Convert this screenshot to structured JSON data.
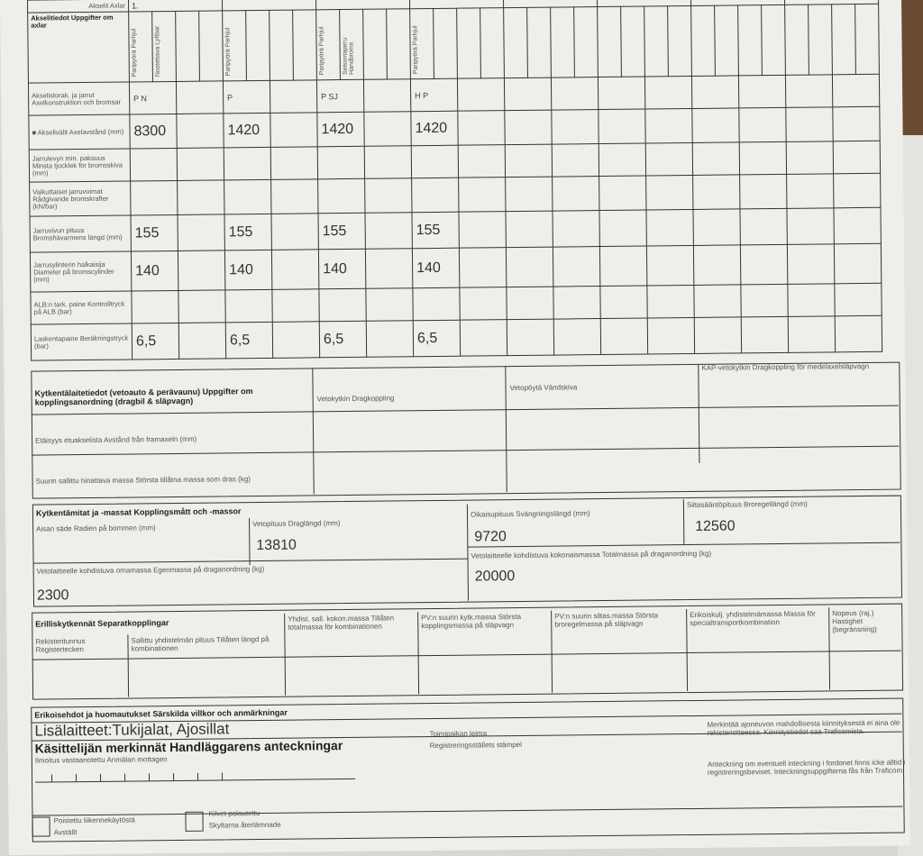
{
  "axles": {
    "header_axles_label": "Akselit Axlar",
    "header_title": "Akselitiedot Uppgifter om axlar",
    "axle_numbers": [
      "1.",
      "",
      "",
      "",
      "",
      "",
      "",
      ""
    ],
    "header_sub": [
      [
        "Paripyörä Parhjul",
        "Nostettava Lyftbar",
        "",
        ""
      ],
      [
        "Paripyörä Parhjul",
        "",
        "",
        ""
      ],
      [
        "Paripyörä Parhjul",
        "Seisontajarru Handbroms",
        "",
        ""
      ],
      [
        "Paripyörä Parhjul",
        "",
        "",
        ""
      ]
    ],
    "rows": [
      {
        "label": "Akselistorak. ja jarrut Axelkonstruktion och bromsar",
        "values": [
          "P   N",
          "P",
          "P   SJ",
          "H   P"
        ],
        "kind": "code"
      },
      {
        "label": "■ Akselivälit Axelavstånd (mm)",
        "values": [
          "8300",
          "1420",
          "1420",
          "1420"
        ],
        "kind": "val"
      },
      {
        "label": "Jarrulevyn min. paksuus Minsta tjocklek för bromsskiva (mm)",
        "values": [
          "",
          "",
          "",
          ""
        ],
        "kind": "val"
      },
      {
        "label": "Vaikuttaiset jarruvoimat Rådgivande bromskrafter (kN/bar)",
        "values": [
          "",
          "",
          "",
          ""
        ],
        "kind": "val"
      },
      {
        "label": "Jarruvivun pituus Bromshävarmens längd (mm)",
        "values": [
          "155",
          "155",
          "155",
          "155"
        ],
        "kind": "val"
      },
      {
        "label": "Jarrusylinterin halkaisija Diameter på bromscylinder (mm)",
        "values": [
          "140",
          "140",
          "140",
          "140"
        ],
        "kind": "val"
      },
      {
        "label": "ALB:n tark. paine Kontrolltryck på ALB (bar)",
        "values": [
          "",
          "",
          "",
          ""
        ],
        "kind": "val"
      },
      {
        "label": "Laskentapaine Beräkningstryck (bar)",
        "values": [
          "6,5",
          "6,5",
          "6,5",
          "6,5"
        ],
        "kind": "val"
      }
    ]
  },
  "coupling": {
    "title": "Kytkentälaitetiedot (vetoauto & perävaunu) Uppgifter om kopplingsanordning (dragbil & släpvagn)",
    "col1": "Vetokytkin Dragkoppling",
    "col2": "Vetopöytä Vändskiva",
    "col3": "KAP-vetokytkin Dragkoppling för medelaxelsläpvagn",
    "row1": "Etäisyys etuakselista Avstånd från framaxeln (mm)",
    "row2": "Suurin sallittu hinattava massa Största tillåtna massa som dras (kg)"
  },
  "dimensions": {
    "title": "Kytkentämitat ja -massat Kopplingsmått och -massor",
    "radius_label": "Aisan säde Radien på bommen (mm)",
    "draw_length_label": "Vetopituus Draglängd (mm)",
    "draw_length": "13810",
    "turning_length_label": "Oikaisupituus Svängningslängd (mm)",
    "turning_length": "9720",
    "bridge_length_label": "Siltasääntöpituus Broregellängd (mm)",
    "bridge_length": "12560",
    "own_mass_label": "Vetolaitteelle kohdistuva omamassa Egenmassa på draganordning (kg)",
    "own_mass": "2300",
    "total_mass_label": "Vetolaitteelle kohdistuva kokonaismassa Totalmassa på draganordning (kg)",
    "total_mass": "20000"
  },
  "separate": {
    "title": "Erilliskytkennät Separatkopplingar",
    "cols": [
      "Rekisteritunnus Registertecken",
      "Sallittu yhdistelmän pituus Tillåten längd på kombinationen",
      "Yhdist. sall. kokon.massa Tillåten totalmassa för kombinationen",
      "PV:n suurin kytk.massa Största kopplingsmassa på släpvagn",
      "PV:n suurin siltas.massa Största broregelmassa på släpvagn",
      "Erikoiskulj. yhdistelmämassa Massa för specialtransportkombination",
      "Nopeus (raj.) Hastighet (begränsning)"
    ]
  },
  "remarks": {
    "title": "Erikoisehdot ja huomautukset Särskilda villkor och anmärkningar",
    "text": "Lisälaitteet:Tukijalat, Ajosillat",
    "handler_title": "Käsittelijän merkinnät Handläggarens anteckningar",
    "received": "Ilmoitus vastaanotettu Anmälan mottagen",
    "stamp1": "Toimipaikan leima",
    "stamp2": "Registreringsställets stämpel",
    "note1": "Merkintää ajoneuvon mahdollisesta kiinnityksestä ei aina ole rekisteriotteessa. Kiinnitystiedot saa Traficomista.",
    "note2": "Anteckning om eventuell inteckning i fordonet finns icke alltid i registreringsbeviset. Inteckningsuppgifterna fås från Traficom.",
    "check1_a": "Poistettu liikennekäytöstä",
    "check1_b": "Avställt",
    "check2_a": "Kilvet palautettu",
    "check2_b": "Skyltarna återlämnade"
  }
}
